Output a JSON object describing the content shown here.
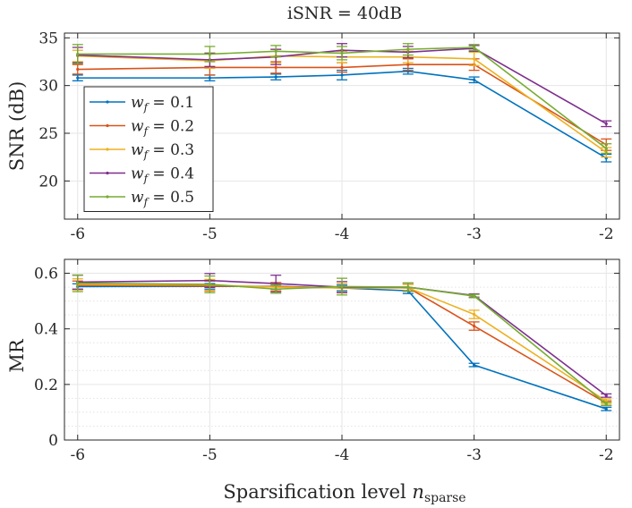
{
  "chart_data": [
    {
      "type": "line",
      "title": "iSNR = 40dB",
      "ylabel": "SNR (dB)",
      "xlabel": "",
      "x": [
        -6,
        -5,
        -4.5,
        -4,
        -3.5,
        -3,
        -2
      ],
      "xticks": [
        -6,
        -5,
        -4,
        -3,
        -2
      ],
      "xticklabels": [
        "-6",
        "-5",
        "-4",
        "-3",
        "-2"
      ],
      "xlim": [
        -6.1,
        -1.9
      ],
      "ylim": [
        16,
        35.5
      ],
      "yticks": [
        20,
        25,
        30,
        35
      ],
      "yticklabels": [
        "20",
        "25",
        "30",
        "35"
      ],
      "grid": true,
      "minor_grid": false,
      "legend_position": "bottom-left",
      "series": [
        {
          "name": "w_f = 0.1",
          "legend": {
            "var": "w",
            "sub": "f",
            "value": "0.1"
          },
          "color": "#0072BD",
          "values": [
            30.8,
            30.8,
            30.9,
            31.1,
            31.5,
            30.6,
            22.4
          ],
          "errors": [
            0.3,
            0.3,
            0.3,
            0.5,
            0.3,
            0.3,
            0.4
          ]
        },
        {
          "name": "w_f = 0.2",
          "legend": {
            "var": "w",
            "sub": "f",
            "value": "0.2"
          },
          "color": "#D95319",
          "values": [
            31.7,
            31.9,
            31.9,
            31.9,
            32.2,
            32.2,
            23.8
          ],
          "errors": [
            0.5,
            0.8,
            0.6,
            0.5,
            0.6,
            0.6,
            0.6
          ]
        },
        {
          "name": "w_f = 0.3",
          "legend": {
            "var": "w",
            "sub": "f",
            "value": "0.3"
          },
          "color": "#EDB120",
          "values": [
            33.1,
            32.6,
            33.1,
            33.0,
            33.0,
            32.8,
            23.0
          ],
          "errors": [
            0.6,
            0.8,
            0.7,
            0.6,
            0.6,
            0.7,
            0.5
          ]
        },
        {
          "name": "w_f = 0.4",
          "legend": {
            "var": "w",
            "sub": "f",
            "value": "0.4"
          },
          "color": "#7E2F8E",
          "values": [
            33.2,
            32.7,
            33.0,
            33.7,
            33.5,
            33.9,
            26.0
          ],
          "errors": [
            0.8,
            0.7,
            0.8,
            0.7,
            0.6,
            0.3,
            0.3
          ]
        },
        {
          "name": "w_f = 0.5",
          "legend": {
            "var": "w",
            "sub": "f",
            "value": "0.5"
          },
          "color": "#77AC30",
          "values": [
            33.3,
            33.3,
            33.6,
            33.4,
            33.8,
            34.0,
            23.4
          ],
          "errors": [
            1.0,
            0.8,
            0.6,
            0.7,
            0.6,
            0.3,
            0.5
          ]
        }
      ]
    },
    {
      "type": "line",
      "title": "",
      "ylabel": "MR",
      "xlabel": "Sparsification level",
      "xlabel_symbol": {
        "var": "n",
        "sub": "sparse"
      },
      "x": [
        -6,
        -5,
        -4.5,
        -4,
        -3.5,
        -3,
        -2
      ],
      "xticks": [
        -6,
        -5,
        -4,
        -3,
        -2
      ],
      "xticklabels": [
        "-6",
        "-5",
        "-4",
        "-3",
        "-2"
      ],
      "xlim": [
        -6.1,
        -1.9
      ],
      "ylim": [
        0,
        0.65
      ],
      "yticks": [
        0,
        0.2,
        0.4,
        0.6
      ],
      "yticklabels": [
        "0",
        "0.2",
        "0.4",
        "0.6"
      ],
      "grid": true,
      "minor_grid": true,
      "series": [
        {
          "name": "w_f = 0.1",
          "color": "#0072BD",
          "values": [
            0.552,
            0.553,
            0.553,
            0.547,
            0.537,
            0.27,
            0.112
          ],
          "errors": [
            0.01,
            0.01,
            0.01,
            0.01,
            0.01,
            0.006,
            0.006
          ]
        },
        {
          "name": "w_f = 0.2",
          "color": "#D95319",
          "values": [
            0.557,
            0.554,
            0.552,
            0.547,
            0.548,
            0.41,
            0.133
          ],
          "errors": [
            0.015,
            0.018,
            0.015,
            0.015,
            0.012,
            0.015,
            0.008
          ]
        },
        {
          "name": "w_f = 0.3",
          "color": "#EDB120",
          "values": [
            0.56,
            0.558,
            0.55,
            0.547,
            0.548,
            0.452,
            0.14
          ],
          "errors": [
            0.02,
            0.02,
            0.015,
            0.015,
            0.012,
            0.015,
            0.008
          ]
        },
        {
          "name": "w_f = 0.4",
          "color": "#7E2F8E",
          "values": [
            0.568,
            0.574,
            0.563,
            0.55,
            0.55,
            0.52,
            0.16
          ],
          "errors": [
            0.025,
            0.025,
            0.03,
            0.02,
            0.015,
            0.006,
            0.006
          ]
        },
        {
          "name": "w_f = 0.5",
          "color": "#77AC30",
          "values": [
            0.564,
            0.56,
            0.543,
            0.552,
            0.55,
            0.518,
            0.13
          ],
          "errors": [
            0.03,
            0.03,
            0.015,
            0.03,
            0.015,
            0.006,
            0.006
          ]
        }
      ]
    }
  ]
}
